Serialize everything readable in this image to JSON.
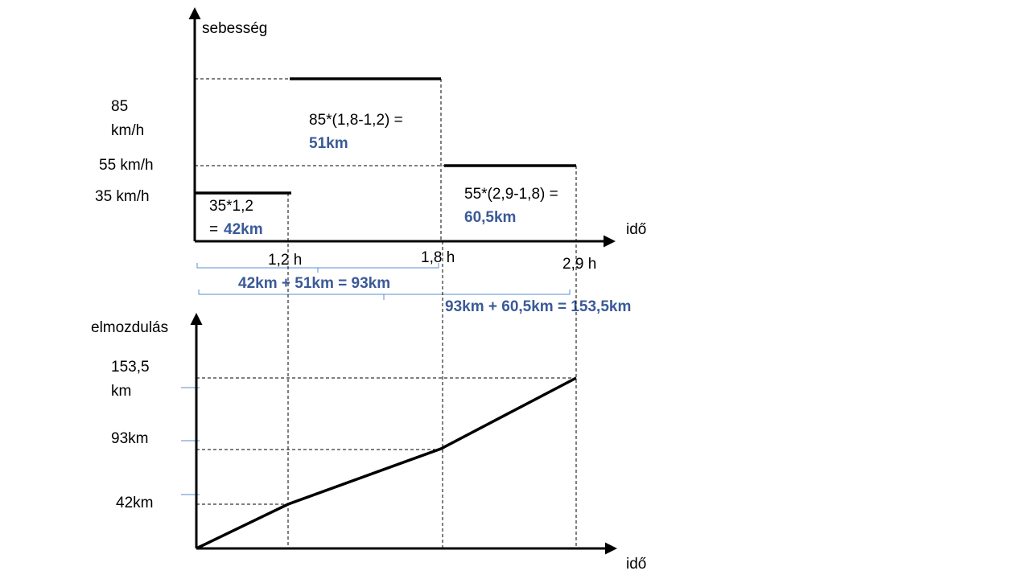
{
  "top_graph": {
    "y_axis_label": "sebesség",
    "x_axis_label": "idő",
    "y_labels": [
      [
        "85",
        "km/h"
      ],
      [
        "55 km/h"
      ],
      [
        "35 km/h"
      ]
    ],
    "x_labels": [
      "1,2 h",
      "1,8 h",
      "2,9 h"
    ],
    "areas": [
      {
        "formula": "35*1,2",
        "prefix": "=",
        "result": "42km"
      },
      {
        "formula": "85*(1,8-1,2) =",
        "result": "51km"
      },
      {
        "formula": "55*(2,9-1,8) =",
        "result": "60,5km"
      }
    ]
  },
  "sums": [
    "42km + 51km = 93km",
    "93km + 60,5km = 153,5km"
  ],
  "bottom_graph": {
    "y_axis_label": "elmozdulás",
    "x_axis_label": "idő",
    "y_labels": [
      [
        "153,5",
        "km"
      ],
      [
        "93km"
      ],
      [
        "42km"
      ]
    ]
  }
}
